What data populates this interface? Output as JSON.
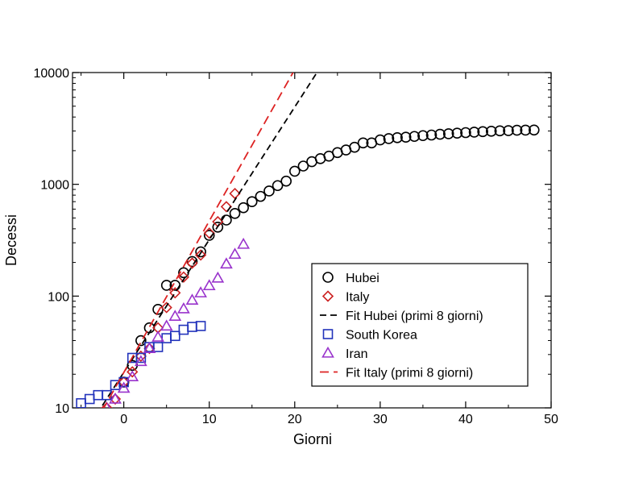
{
  "chart_data": {
    "type": "scatter",
    "title": "",
    "xlabel": "Giorni",
    "ylabel": "Decessi",
    "xlim": [
      -6,
      50
    ],
    "ylim": [
      10,
      10000
    ],
    "yscale": "log",
    "grid": false,
    "legend_position": "bottom-right",
    "x_ticks": [
      {
        "value": 0,
        "label": "0"
      },
      {
        "value": 10,
        "label": "10"
      },
      {
        "value": 20,
        "label": "20"
      },
      {
        "value": 30,
        "label": "30"
      },
      {
        "value": 40,
        "label": "40"
      },
      {
        "value": 50,
        "label": "50"
      }
    ],
    "y_ticks": [
      {
        "value": 10,
        "label": "10"
      },
      {
        "value": 100,
        "label": "100"
      },
      {
        "value": 1000,
        "label": "1000"
      },
      {
        "value": 10000,
        "label": "10000"
      }
    ],
    "series": [
      {
        "name": "Hubei",
        "kind": "points",
        "marker": "circle",
        "color": "#000000",
        "x": [
          0,
          1,
          2,
          3,
          4,
          5,
          6,
          7,
          8,
          9,
          10,
          11,
          12,
          13,
          14,
          15,
          16,
          17,
          18,
          19,
          20,
          21,
          22,
          23,
          24,
          25,
          26,
          27,
          28,
          29,
          30,
          31,
          32,
          33,
          34,
          35,
          36,
          37,
          38,
          39,
          40,
          41,
          42,
          43,
          44,
          45,
          46,
          47,
          48
        ],
        "y": [
          17,
          24,
          40,
          52,
          76,
          125,
          125,
          162,
          204,
          249,
          350,
          414,
          479,
          549,
          618,
          699,
          780,
          871,
          974,
          1068,
          1310,
          1457,
          1596,
          1696,
          1789,
          1921,
          2029,
          2144,
          2346,
          2346,
          2495,
          2563,
          2615,
          2641,
          2682,
          2727,
          2761,
          2803,
          2835,
          2871,
          2902,
          2931,
          2959,
          2986,
          3008,
          3024,
          3046,
          3056,
          3062
        ]
      },
      {
        "name": "Italy",
        "kind": "points",
        "marker": "diamond",
        "color": "#cc2222",
        "x": [
          -2,
          -1,
          0,
          1,
          2,
          3,
          4,
          5,
          6,
          7,
          8,
          9,
          10,
          11,
          12,
          13
        ],
        "y": [
          10,
          12,
          17,
          21,
          29,
          34,
          52,
          79,
          107,
          148,
          197,
          233,
          366,
          463,
          631,
          827
        ]
      },
      {
        "name": "Fit Hubei (primi 8 giorni)",
        "kind": "line",
        "dash": "8,5",
        "color": "#000000",
        "x": [
          -2.5,
          22.6
        ],
        "y": [
          10.5,
          10000
        ]
      },
      {
        "name": "South Korea",
        "kind": "points",
        "marker": "square",
        "color": "#2233bb",
        "x": [
          -5,
          -4,
          -3,
          -2,
          -1,
          0,
          1,
          2,
          3,
          4,
          5,
          6,
          7,
          8,
          9
        ],
        "y": [
          11,
          12,
          13,
          13,
          16,
          17,
          28,
          28,
          35,
          35,
          42,
          44,
          50,
          53,
          54
        ]
      },
      {
        "name": "Iran",
        "kind": "points",
        "marker": "triangle",
        "color": "#9933cc",
        "x": [
          -2,
          -1,
          0,
          1,
          2,
          3,
          4,
          5,
          6,
          7,
          8,
          9,
          10,
          11,
          12,
          13,
          14
        ],
        "y": [
          10,
          12,
          15,
          19,
          26,
          34,
          43,
          54,
          66,
          77,
          92,
          107,
          124,
          145,
          194,
          237,
          291
        ]
      },
      {
        "name": "Fit Italy (primi 8 giorni)",
        "kind": "line",
        "dash": "11,6",
        "color": "#dd2222",
        "x": [
          -2.5,
          19.8
        ],
        "y": [
          9.5,
          10000
        ]
      }
    ]
  }
}
